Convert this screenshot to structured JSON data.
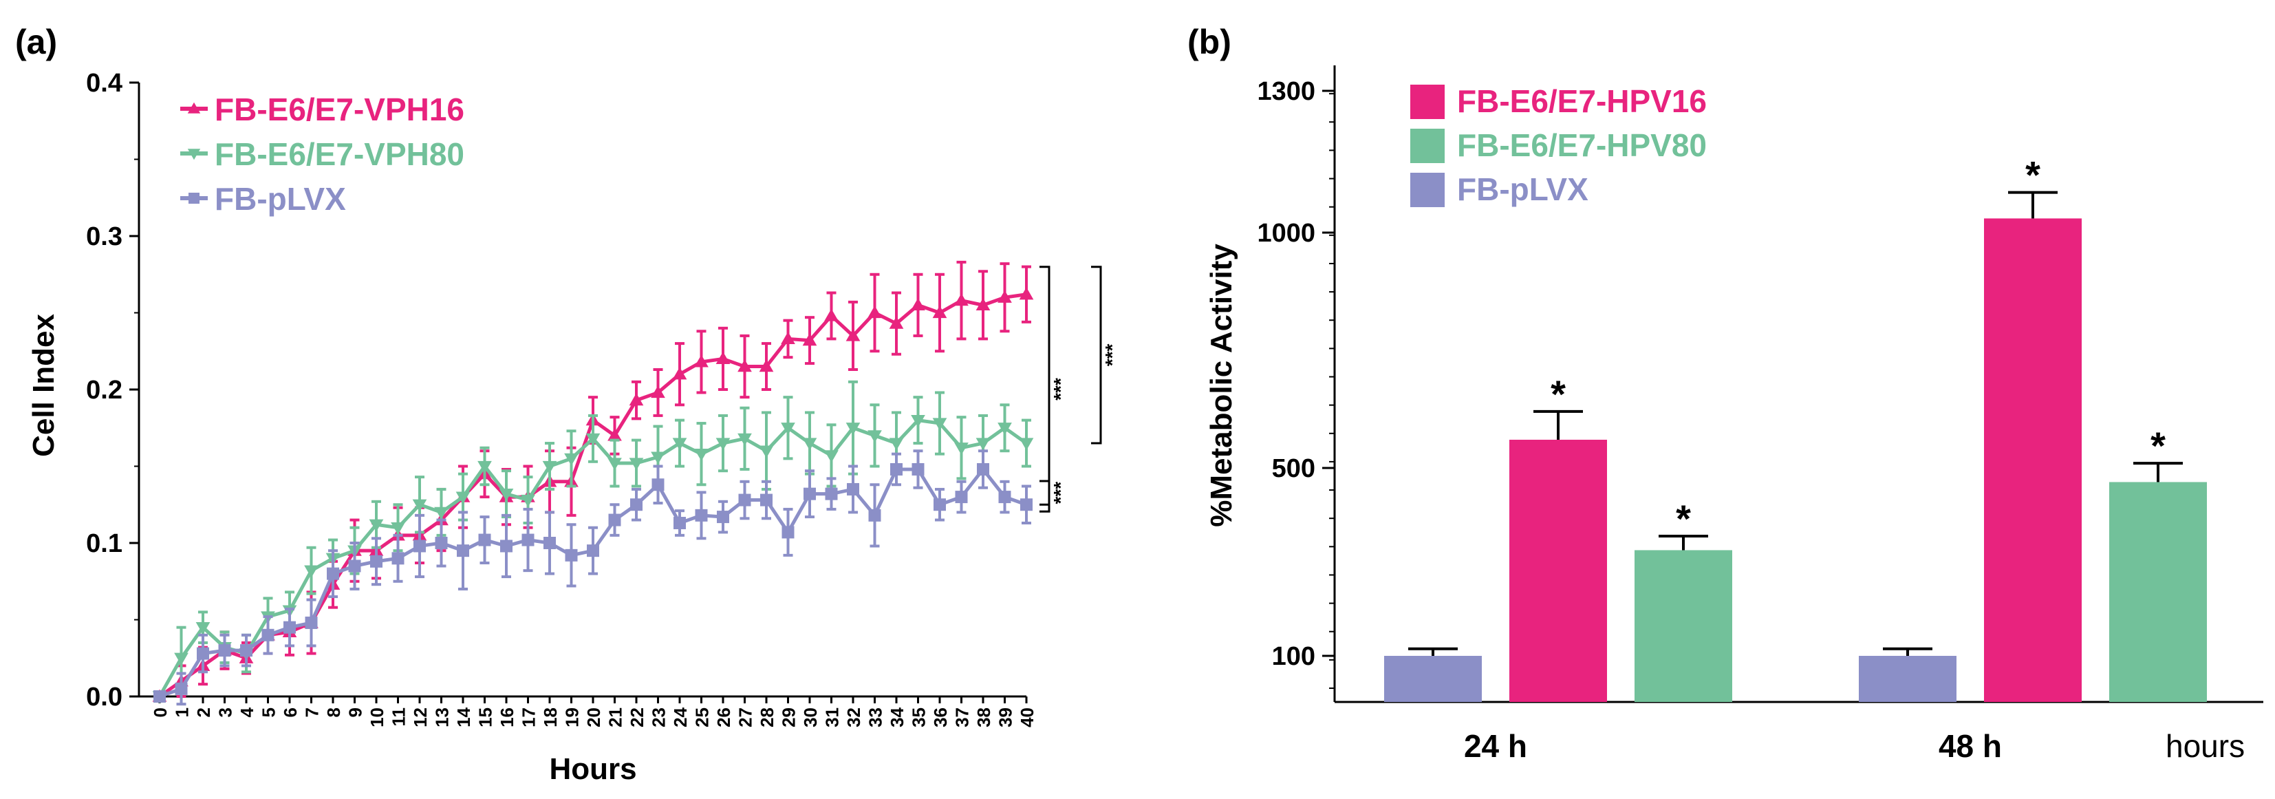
{
  "chart_data": [
    {
      "panel": "(a)",
      "type": "line",
      "xlabel": "Hours",
      "ylabel": "Cell Index",
      "ylim": [
        0,
        0.4
      ],
      "yticks": [
        "0.0",
        "0.1",
        "0.2",
        "0.3",
        "0.4"
      ],
      "xticks": [
        "0",
        "1",
        "2",
        "3",
        "4",
        "5",
        "6",
        "7",
        "8",
        "9",
        "10",
        "11",
        "12",
        "13",
        "14",
        "15",
        "16",
        "17",
        "18",
        "19",
        "20",
        "21",
        "22",
        "23",
        "24",
        "25",
        "26",
        "27",
        "28",
        "29",
        "30",
        "31",
        "32",
        "33",
        "34",
        "35",
        "36",
        "37",
        "38",
        "39",
        "40"
      ],
      "x": [
        0,
        1,
        2,
        3,
        4,
        5,
        6,
        7,
        8,
        9,
        10,
        11,
        12,
        13,
        14,
        15,
        16,
        17,
        18,
        19,
        20,
        21,
        22,
        23,
        24,
        25,
        26,
        27,
        28,
        29,
        30,
        31,
        32,
        33,
        34,
        35,
        36,
        37,
        38,
        39,
        40
      ],
      "series": [
        {
          "name": "FB-E6/E7-VPH16",
          "color": "#e8237e",
          "marker": "triangle-up",
          "values": [
            0.0,
            0.01,
            0.02,
            0.03,
            0.025,
            0.04,
            0.042,
            0.048,
            0.073,
            0.095,
            0.095,
            0.105,
            0.105,
            0.115,
            0.13,
            0.145,
            0.13,
            0.13,
            0.14,
            0.14,
            0.18,
            0.17,
            0.193,
            0.198,
            0.21,
            0.218,
            0.22,
            0.215,
            0.215,
            0.233,
            0.232,
            0.248,
            0.235,
            0.25,
            0.243,
            0.255,
            0.25,
            0.258,
            0.255,
            0.26,
            0.262
          ],
          "errors": [
            0.003,
            0.01,
            0.012,
            0.012,
            0.01,
            0.012,
            0.015,
            0.02,
            0.015,
            0.02,
            0.018,
            0.018,
            0.018,
            0.02,
            0.02,
            0.015,
            0.018,
            0.02,
            0.02,
            0.022,
            0.015,
            0.012,
            0.012,
            0.015,
            0.02,
            0.02,
            0.02,
            0.02,
            0.015,
            0.012,
            0.015,
            0.015,
            0.022,
            0.025,
            0.02,
            0.02,
            0.025,
            0.025,
            0.022,
            0.022,
            0.018
          ]
        },
        {
          "name": "FB-E6/E7-VPH80",
          "color": "#72c19a",
          "marker": "triangle-down",
          "values": [
            0.0,
            0.025,
            0.045,
            0.032,
            0.028,
            0.052,
            0.056,
            0.082,
            0.09,
            0.095,
            0.112,
            0.11,
            0.125,
            0.12,
            0.13,
            0.15,
            0.132,
            0.128,
            0.15,
            0.155,
            0.168,
            0.152,
            0.152,
            0.156,
            0.165,
            0.158,
            0.165,
            0.168,
            0.16,
            0.175,
            0.165,
            0.157,
            0.175,
            0.17,
            0.165,
            0.18,
            0.178,
            0.162,
            0.165,
            0.175,
            0.165
          ],
          "errors": [
            0.003,
            0.02,
            0.01,
            0.01,
            0.012,
            0.012,
            0.012,
            0.015,
            0.012,
            0.015,
            0.015,
            0.015,
            0.018,
            0.015,
            0.015,
            0.012,
            0.015,
            0.015,
            0.015,
            0.018,
            0.015,
            0.015,
            0.015,
            0.02,
            0.015,
            0.02,
            0.018,
            0.02,
            0.025,
            0.02,
            0.02,
            0.02,
            0.03,
            0.02,
            0.02,
            0.015,
            0.02,
            0.02,
            0.018,
            0.015,
            0.015
          ]
        },
        {
          "name": "FB-pLVX",
          "color": "#8b8fc7",
          "marker": "square",
          "values": [
            0.0,
            0.005,
            0.028,
            0.03,
            0.03,
            0.04,
            0.045,
            0.048,
            0.08,
            0.085,
            0.088,
            0.09,
            0.098,
            0.1,
            0.095,
            0.102,
            0.098,
            0.102,
            0.1,
            0.092,
            0.095,
            0.115,
            0.125,
            0.138,
            0.113,
            0.118,
            0.117,
            0.128,
            0.128,
            0.107,
            0.132,
            0.132,
            0.135,
            0.118,
            0.148,
            0.148,
            0.125,
            0.13,
            0.148,
            0.13,
            0.125
          ],
          "errors": [
            0.003,
            0.01,
            0.012,
            0.01,
            0.01,
            0.012,
            0.012,
            0.015,
            0.015,
            0.015,
            0.015,
            0.015,
            0.02,
            0.015,
            0.025,
            0.015,
            0.02,
            0.02,
            0.02,
            0.02,
            0.015,
            0.01,
            0.01,
            0.012,
            0.008,
            0.015,
            0.01,
            0.012,
            0.012,
            0.015,
            0.015,
            0.01,
            0.015,
            0.02,
            0.01,
            0.012,
            0.01,
            0.01,
            0.012,
            0.01,
            0.012
          ]
        }
      ],
      "significance": [
        {
          "label": "***",
          "between": [
            "FB-E6/E7-VPH16",
            "FB-pLVX"
          ]
        },
        {
          "label": "***",
          "between": [
            "FB-E6/E7-VPH16",
            "FB-E6/E7-VPH80"
          ]
        },
        {
          "label": "***",
          "between": [
            "FB-E6/E7-VPH80",
            "FB-pLVX"
          ]
        }
      ],
      "legend": "top-left"
    },
    {
      "panel": "(b)",
      "type": "bar",
      "ylabel": "%Metabolic Activity",
      "xlabel": "hours",
      "yticks": [
        100,
        500,
        1000,
        1300
      ],
      "ylim": [
        0,
        1300
      ],
      "categories": [
        "24 h",
        "48 h"
      ],
      "series": [
        {
          "name": "FB-pLVX",
          "color": "#8b8fc7",
          "values": [
            100,
            100
          ],
          "errors": [
            15,
            15
          ],
          "stars": [
            "",
            ""
          ]
        },
        {
          "name": "FB-E6/E7-HPV16",
          "color": "#e8237e",
          "values": [
            560,
            1030
          ],
          "errors": [
            60,
            55
          ],
          "stars": [
            "*",
            "*"
          ]
        },
        {
          "name": "FB-E6/E7-HPV80",
          "color": "#72c19a",
          "values": [
            325,
            470
          ],
          "errors": [
            30,
            40
          ],
          "stars": [
            "*",
            "*"
          ]
        }
      ],
      "legend": "top-left"
    }
  ]
}
